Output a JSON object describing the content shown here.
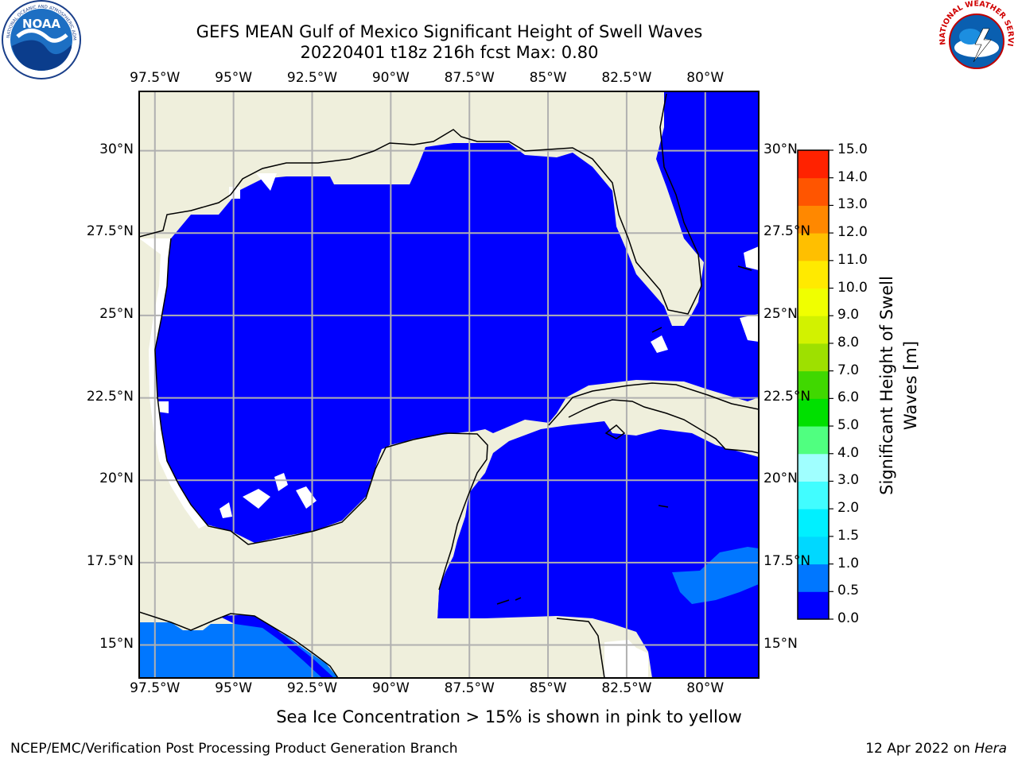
{
  "header": {
    "title_line1": "GEFS MEAN Gulf of Mexico Significant Height of Swell Waves",
    "title_line2": "20220401 t18z 216h fcst   Max: 0.80"
  },
  "logos": {
    "left": {
      "name": "noaa-logo",
      "text": "NOAA",
      "ring_text": "NATIONAL OCEANIC AND ATMOSPHERIC ADMINISTRATION · U.S. DEPARTMENT OF COMMERCE"
    },
    "right": {
      "name": "nws-logo",
      "ring_text": "NATIONAL WEATHER SERVICE"
    }
  },
  "map": {
    "projection": "plate-carree",
    "lon_range": [
      -98.0,
      -78.3
    ],
    "lat_range": [
      14.0,
      31.8
    ],
    "lon_ticks": [
      "97.5°W",
      "95°W",
      "92.5°W",
      "90°W",
      "87.5°W",
      "85°W",
      "82.5°W",
      "80°W"
    ],
    "lat_ticks": [
      "30°N",
      "27.5°N",
      "25°N",
      "22.5°N",
      "20°N",
      "17.5°N",
      "15°N"
    ],
    "colors": {
      "land": "#efefdc",
      "water_0_0.5": "#0000ff",
      "water_0.5_1.0": "#0077ff",
      "no_data": "#ffffff",
      "gridline": "#b0b0b0",
      "coastline": "#000000"
    }
  },
  "colorbar": {
    "label": "Significant Height of Swell Waves [m]",
    "ticks": [
      "0.0",
      "0.5",
      "1.0",
      "1.5",
      "2.0",
      "3.0",
      "4.0",
      "5.0",
      "6.0",
      "7.0",
      "8.0",
      "9.0",
      "10.0",
      "11.0",
      "12.0",
      "13.0",
      "14.0",
      "15.0"
    ],
    "colors": [
      "#0000ff",
      "#0077ff",
      "#00d8ff",
      "#00f0ff",
      "#41fdff",
      "#a0ffff",
      "#50ff80",
      "#00e000",
      "#40d800",
      "#9ee000",
      "#d2f200",
      "#f0ff00",
      "#ffea00",
      "#ffbf00",
      "#ff8800",
      "#ff5500",
      "#ff2200"
    ]
  },
  "notes": {
    "ice": "Sea Ice Concentration > 15% is shown in pink to yellow",
    "credit": "NCEP/EMC/Verification Post Processing Product Generation Branch",
    "date": "12 Apr 2022 on ",
    "host": "Hera"
  }
}
